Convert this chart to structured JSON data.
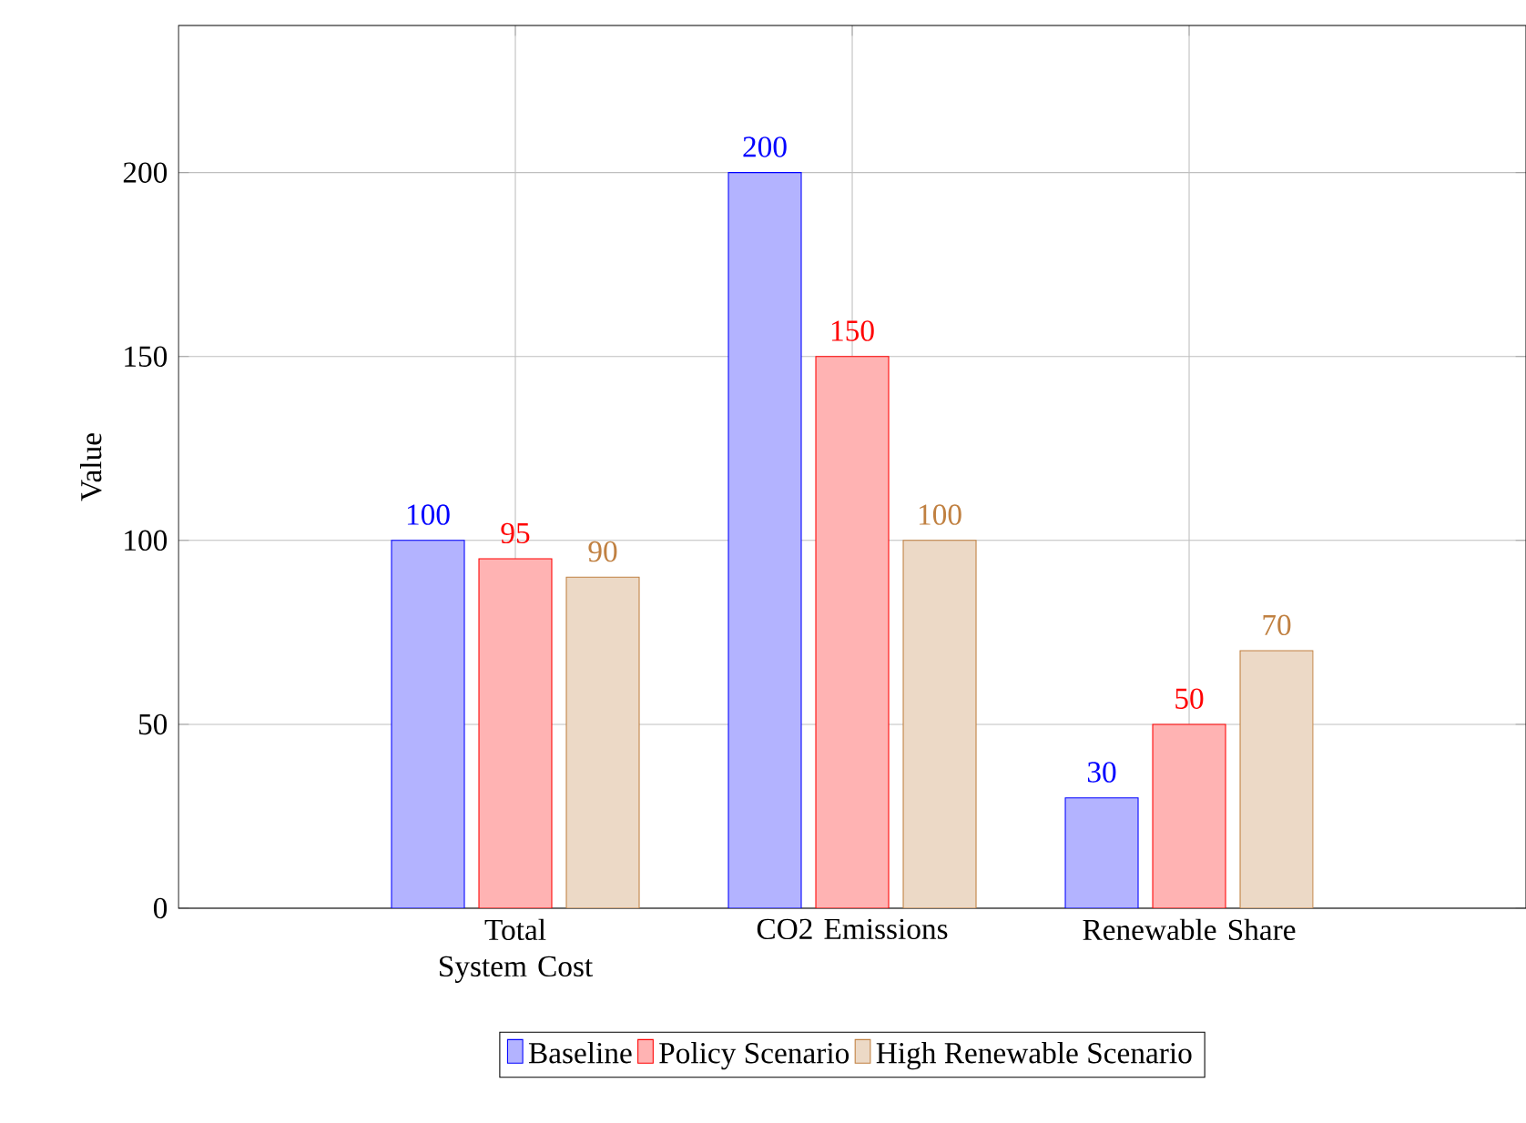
{
  "chart_data": {
    "type": "bar",
    "ylabel": "Value",
    "categories": [
      "Total System Cost",
      "CO2 Emissions",
      "Renewable Share"
    ],
    "series": [
      {
        "name": "Baseline",
        "color": "#b3b3ff",
        "values": [
          100,
          200,
          30
        ]
      },
      {
        "name": "Policy Scenario",
        "color": "#ffb3b3",
        "values": [
          95,
          150,
          50
        ]
      },
      {
        "name": "High Renewable Scenario",
        "color": "#ecd9c6",
        "values": [
          90,
          100,
          70
        ]
      }
    ],
    "ylim": [
      0,
      240
    ],
    "yticks": [
      0,
      50,
      100,
      150,
      200
    ],
    "grid": true,
    "legend": "bottom",
    "data_labels": true
  }
}
